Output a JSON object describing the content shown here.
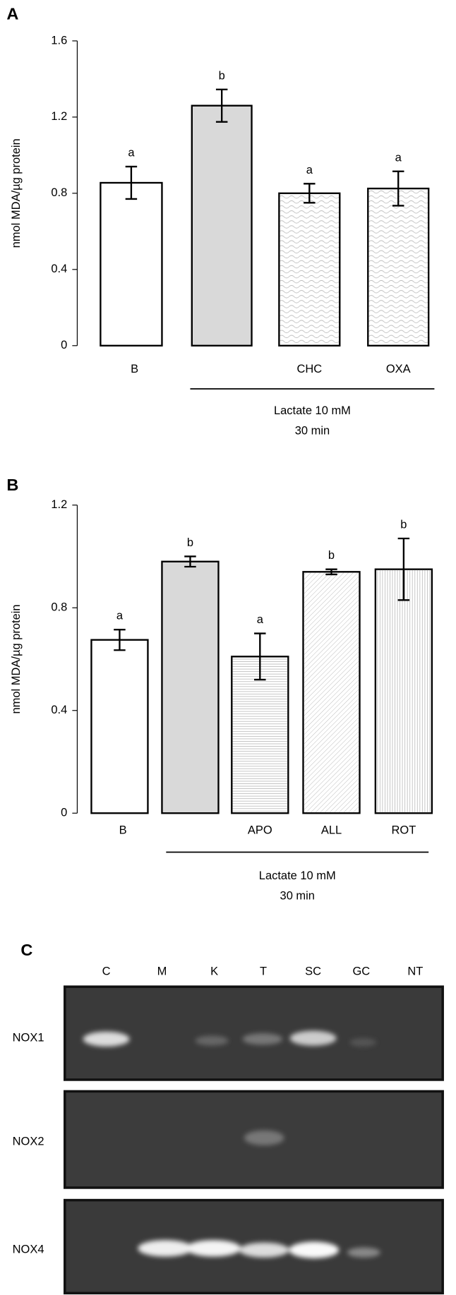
{
  "chart_data": [
    {
      "type": "bar",
      "panel_label": "A",
      "ylabel": "nmol MDA/µg protein",
      "categories": [
        "B",
        null,
        "CHC",
        "OXA"
      ],
      "values": [
        0.855,
        1.26,
        0.8,
        0.825
      ],
      "errors": [
        0.085,
        0.085,
        0.05,
        0.09
      ],
      "significance": [
        "a",
        "b",
        "a",
        "a"
      ],
      "colors": [
        "#ffffff",
        "#d9d9d9",
        "#ffffff",
        "#ffffff"
      ],
      "patterns": [
        "none",
        "none",
        "wave",
        "wave"
      ],
      "group_label": [
        "Lactate 10 mM",
        "30 min"
      ],
      "ylim": [
        0,
        1.6
      ],
      "yticks": [
        0,
        0.4,
        0.8,
        1.2,
        1.6
      ]
    },
    {
      "type": "bar",
      "panel_label": "B",
      "ylabel": "nmol MDA/µg protein",
      "categories": [
        "B",
        null,
        "APO",
        "ALL",
        "ROT"
      ],
      "values": [
        0.675,
        0.98,
        0.61,
        0.94,
        0.95
      ],
      "errors": [
        0.04,
        0.02,
        0.09,
        0.01,
        0.12
      ],
      "significance": [
        "a",
        "b",
        "a",
        "b",
        "b"
      ],
      "colors": [
        "#ffffff",
        "#d9d9d9",
        "#ffffff",
        "#ffffff",
        "#ffffff"
      ],
      "patterns": [
        "none",
        "none",
        "horizontal",
        "diagonal",
        "vertical"
      ],
      "group_label": [
        "Lactate 10 mM",
        "30 min"
      ],
      "ylim": [
        0,
        1.2
      ],
      "yticks": [
        0,
        0.4,
        0.8,
        1.2
      ]
    }
  ],
  "gel": {
    "panel_label": "C",
    "lanes": [
      "C",
      "M",
      "K",
      "T",
      "SC",
      "GC",
      "NT"
    ],
    "rows": [
      "NOX1",
      "NOX2",
      "NOX4"
    ]
  }
}
